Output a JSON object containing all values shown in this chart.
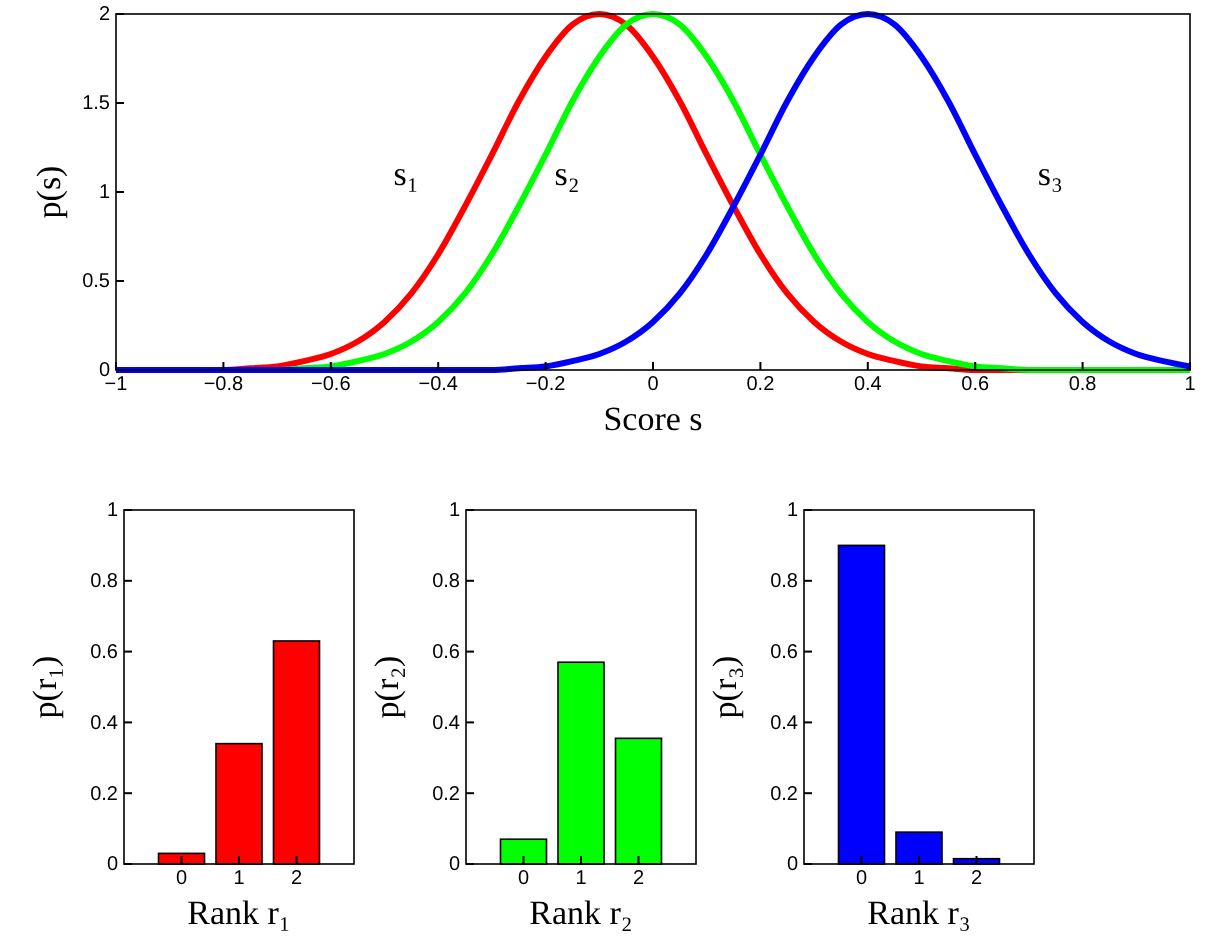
{
  "chart_data": [
    {
      "type": "line",
      "xlabel": "Score s",
      "ylabel": "p(s)",
      "x": [
        -1,
        -0.95,
        -0.9,
        -0.85,
        -0.8,
        -0.75,
        -0.7,
        -0.65,
        -0.6,
        -0.55,
        -0.5,
        -0.45,
        -0.4,
        -0.35,
        -0.3,
        -0.25,
        -0.2,
        -0.15,
        -0.1,
        -0.05,
        0,
        0.05,
        0.1,
        0.15,
        0.2,
        0.25,
        0.3,
        0.35,
        0.4,
        0.45,
        0.5,
        0.55,
        0.6,
        0.65,
        0.7,
        0.75,
        0.8,
        0.85,
        0.9,
        0.95,
        1
      ],
      "series": [
        {
          "color": "#ff0000",
          "values": [
            null,
            null,
            null,
            0,
            0,
            0.01,
            0.02,
            0.05,
            0.09,
            0.16,
            0.27,
            0.43,
            0.65,
            0.92,
            1.21,
            1.51,
            1.76,
            1.94,
            2,
            1.94,
            1.76,
            1.51,
            1.21,
            0.92,
            0.65,
            0.43,
            0.27,
            0.16,
            0.09,
            0.05,
            0.02,
            0.01,
            0,
            0,
            0,
            0,
            null,
            null,
            null,
            null,
            null
          ]
        },
        {
          "color": "#00ff00",
          "values": [
            null,
            null,
            null,
            null,
            null,
            0,
            0,
            0.01,
            0.02,
            0.05,
            0.09,
            0.16,
            0.27,
            0.43,
            0.65,
            0.92,
            1.21,
            1.51,
            1.76,
            1.94,
            2,
            1.94,
            1.76,
            1.51,
            1.21,
            0.92,
            0.65,
            0.43,
            0.27,
            0.16,
            0.09,
            0.05,
            0.02,
            0.01,
            0,
            0,
            0,
            0,
            0,
            0,
            0
          ]
        },
        {
          "color": "#0000ff",
          "values": [
            0,
            0,
            0,
            0,
            0,
            0,
            0,
            0,
            0,
            0,
            0,
            0,
            0,
            0,
            0,
            0.01,
            0.02,
            0.05,
            0.09,
            0.16,
            0.27,
            0.43,
            0.65,
            0.92,
            1.21,
            1.51,
            1.76,
            1.94,
            2,
            1.94,
            1.76,
            1.51,
            1.21,
            0.92,
            0.65,
            0.43,
            0.27,
            0.16,
            0.09,
            0.05,
            0.02
          ]
        }
      ],
      "xlim": [
        -1,
        1
      ],
      "xticks": [
        -1,
        -0.8,
        -0.6,
        -0.4,
        -0.2,
        0,
        0.2,
        0.4,
        0.6,
        0.8,
        1
      ],
      "ylim": [
        0,
        2
      ],
      "yticks": [
        0,
        0.5,
        1,
        1.5,
        2
      ],
      "annotations": [
        "s₁",
        "s₂",
        "s₃"
      ],
      "grid": false
    },
    {
      "type": "bar",
      "xlabel": "Rank r₁",
      "ylabel": "p(r₁)",
      "categories": [
        "0",
        "1",
        "2"
      ],
      "values": [
        0.03,
        0.34,
        0.63
      ],
      "color": "#ff0000",
      "ylim": [
        0,
        1
      ],
      "yticks": [
        0,
        0.2,
        0.4,
        0.6,
        0.8,
        1
      ],
      "grid": false
    },
    {
      "type": "bar",
      "xlabel": "Rank r₂",
      "ylabel": "p(r₂)",
      "categories": [
        "0",
        "1",
        "2"
      ],
      "values": [
        0.07,
        0.57,
        0.355
      ],
      "color": "#00ff00",
      "ylim": [
        0,
        1
      ],
      "yticks": [
        0,
        0.2,
        0.4,
        0.6,
        0.8,
        1
      ],
      "grid": false
    },
    {
      "type": "bar",
      "xlabel": "Rank r₃",
      "ylabel": "p(r₃)",
      "categories": [
        "0",
        "1",
        "2"
      ],
      "values": [
        0.9,
        0.09,
        0.015
      ],
      "color": "#0000ff",
      "ylim": [
        0,
        1
      ],
      "yticks": [
        0,
        0.2,
        0.4,
        0.6,
        0.8,
        1
      ],
      "grid": false
    }
  ]
}
